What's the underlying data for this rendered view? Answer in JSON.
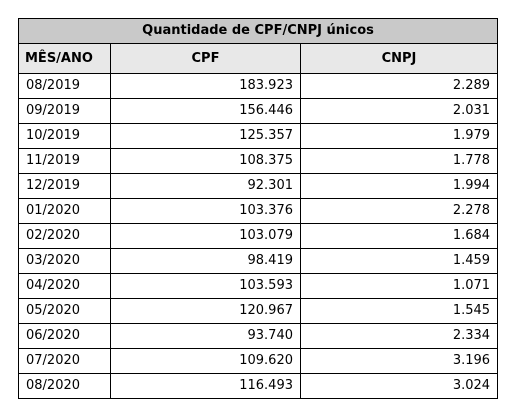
{
  "table": {
    "title": "Quantidade de CPF/CNPJ únicos",
    "headers": {
      "month": "MÊS/ANO",
      "cpf": "CPF",
      "cnpj": "CNPJ"
    },
    "rows": [
      {
        "month": "08/2019",
        "cpf": "183.923",
        "cnpj": "2.289"
      },
      {
        "month": "09/2019",
        "cpf": "156.446",
        "cnpj": "2.031"
      },
      {
        "month": "10/2019",
        "cpf": "125.357",
        "cnpj": "1.979"
      },
      {
        "month": "11/2019",
        "cpf": "108.375",
        "cnpj": "1.778"
      },
      {
        "month": "12/2019",
        "cpf": "92.301",
        "cnpj": "1.994"
      },
      {
        "month": "01/2020",
        "cpf": "103.376",
        "cnpj": "2.278"
      },
      {
        "month": "02/2020",
        "cpf": "103.079",
        "cnpj": "1.684"
      },
      {
        "month": "03/2020",
        "cpf": "98.419",
        "cnpj": "1.459"
      },
      {
        "month": "04/2020",
        "cpf": "103.593",
        "cnpj": "1.071"
      },
      {
        "month": "05/2020",
        "cpf": "120.967",
        "cnpj": "1.545"
      },
      {
        "month": "06/2020",
        "cpf": "93.740",
        "cnpj": "2.334"
      },
      {
        "month": "07/2020",
        "cpf": "109.620",
        "cnpj": "3.196"
      },
      {
        "month": "08/2020",
        "cpf": "116.493",
        "cnpj": "3.024"
      }
    ]
  }
}
